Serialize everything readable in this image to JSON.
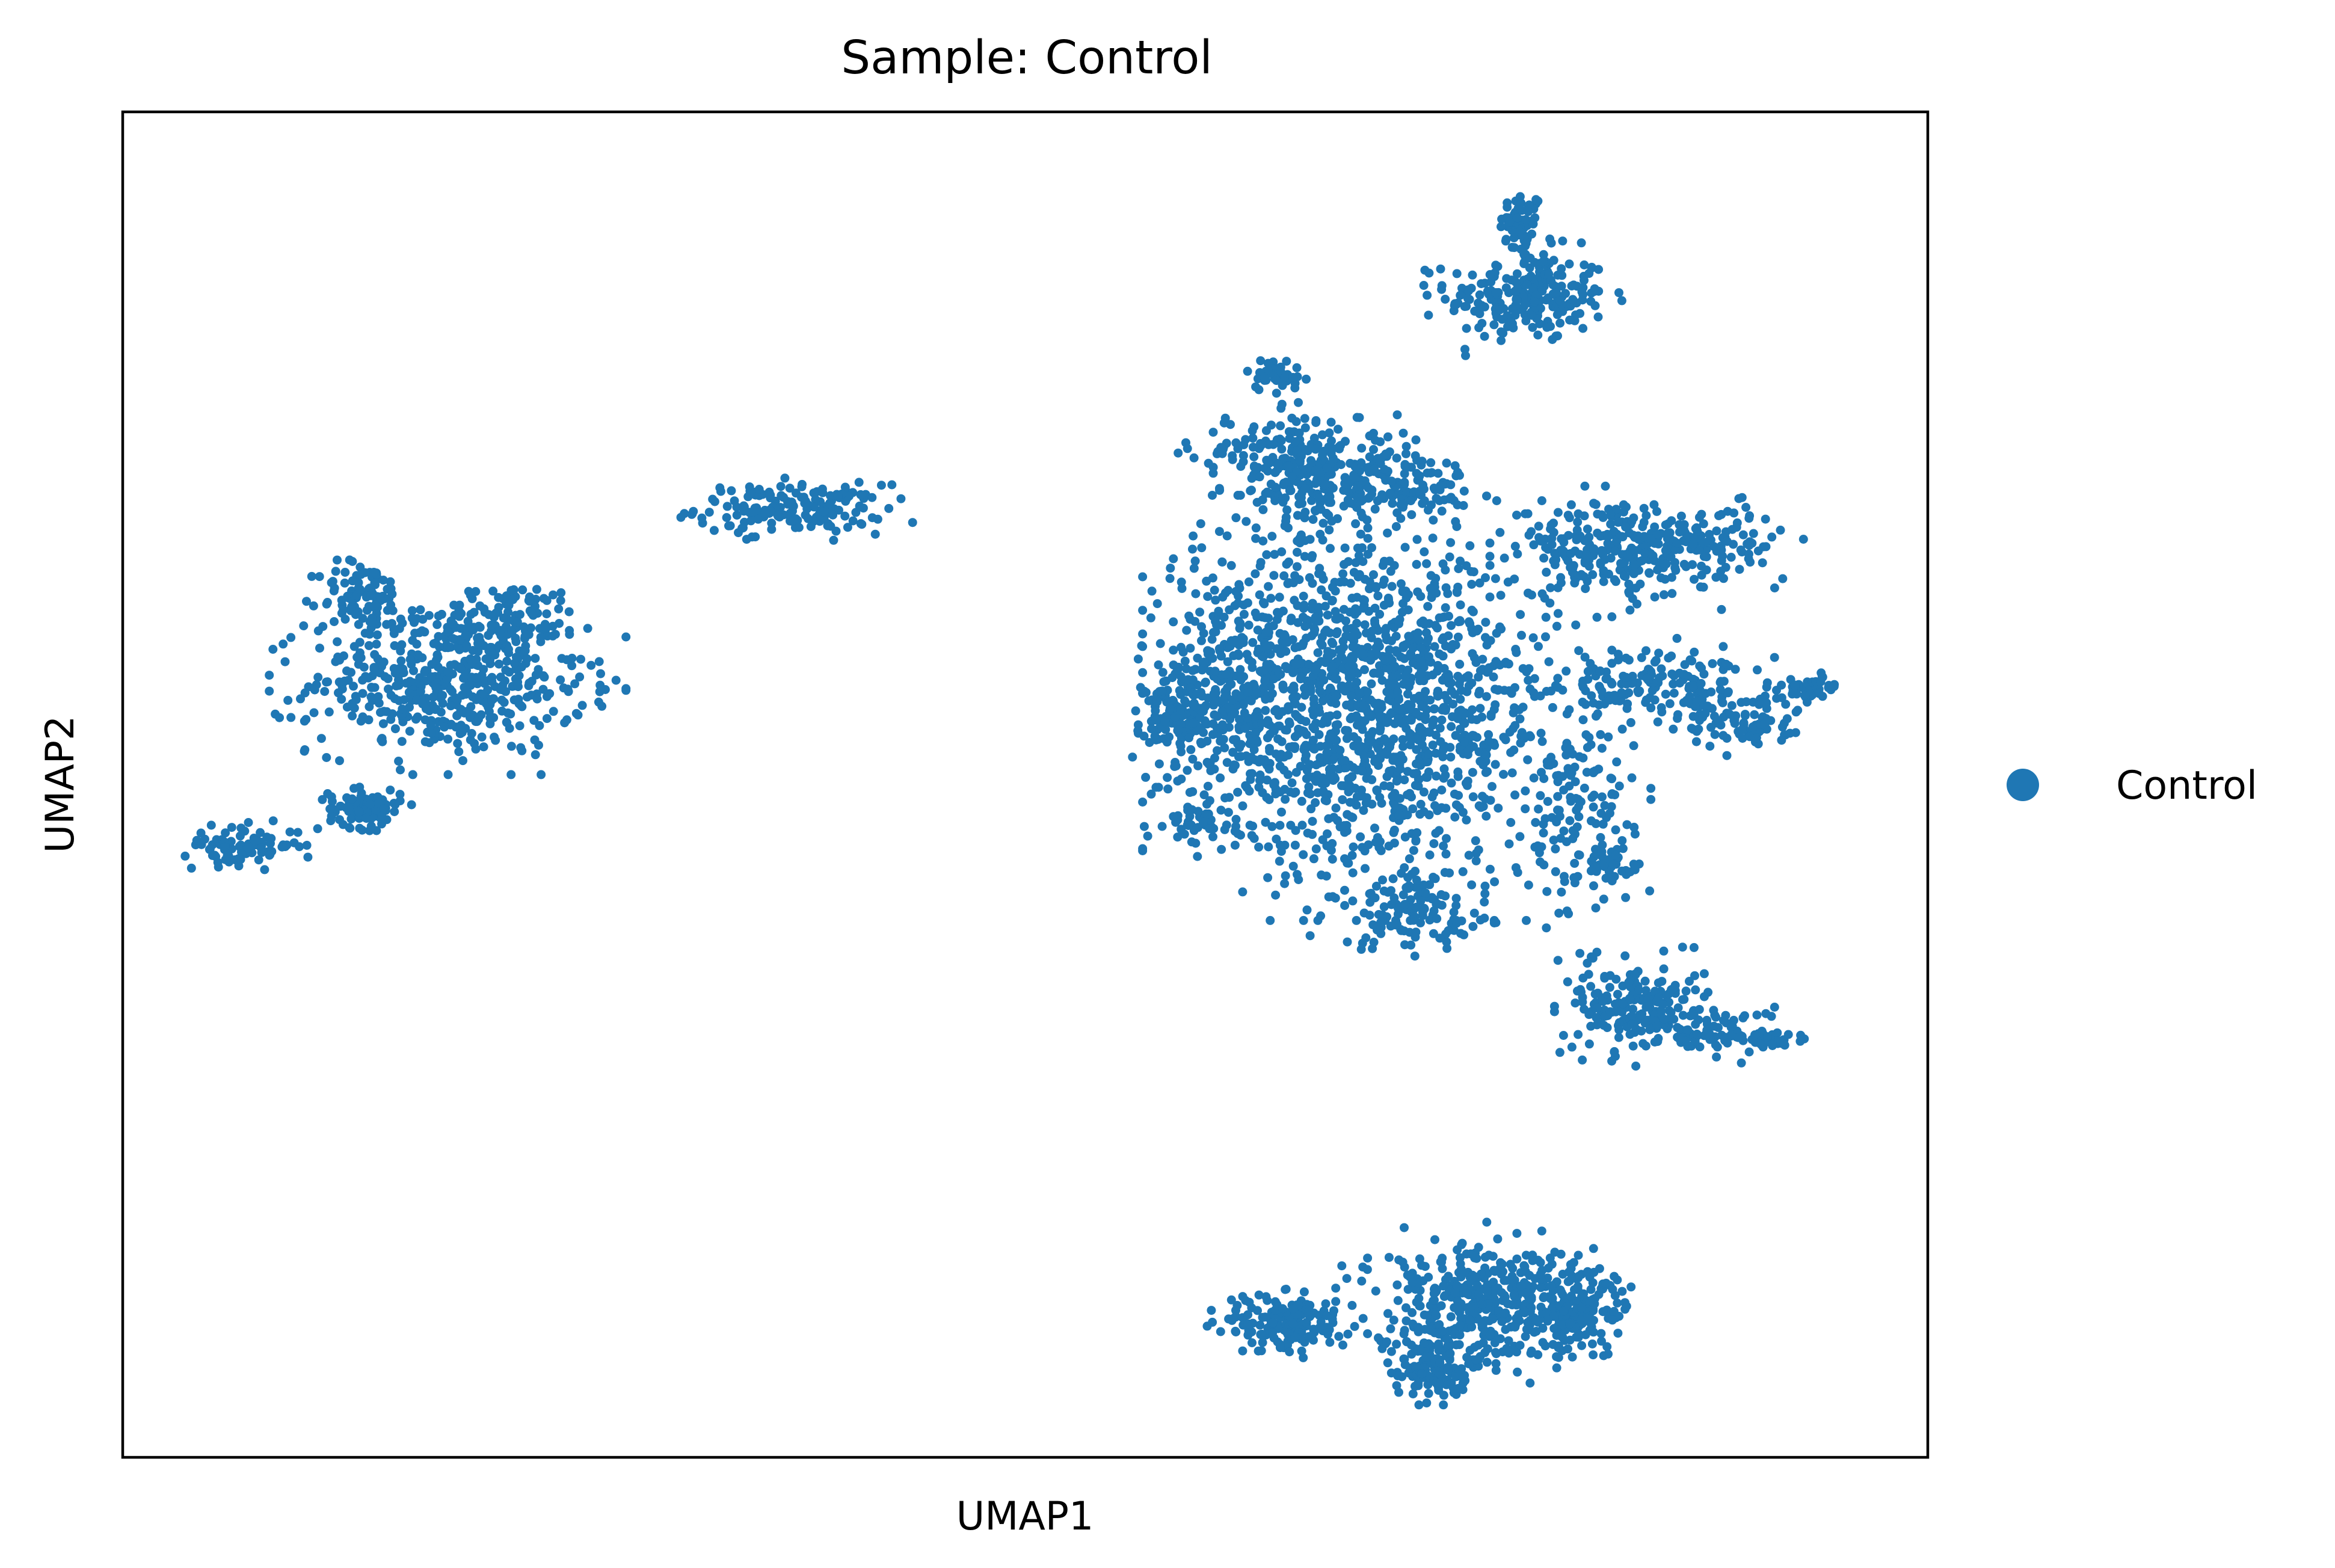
{
  "chart_data": {
    "type": "scatter",
    "title": "Sample: Control",
    "xlabel": "UMAP1",
    "ylabel": "UMAP2",
    "xlim": [
      0,
      100
    ],
    "ylim": [
      0,
      100
    ],
    "xticks": [],
    "yticks": [],
    "grid": false,
    "legend": {
      "position": "right",
      "entries": [
        "Control"
      ]
    },
    "series": [
      {
        "name": "Control",
        "color": "#1f77b4",
        "clusters": [
          {
            "cx": 77.5,
            "cy": 91.5,
            "sx": 0.6,
            "sy": 1.3,
            "n": 60
          },
          {
            "cx": 77.8,
            "cy": 86.3,
            "sx": 2.2,
            "sy": 1.7,
            "n": 230
          },
          {
            "cx": 37.0,
            "cy": 70.5,
            "sx": 2.6,
            "sy": 0.9,
            "n": 170
          },
          {
            "cx": 18.0,
            "cy": 57.5,
            "sx": 3.8,
            "sy": 2.6,
            "n": 520
          },
          {
            "cx": 13.3,
            "cy": 64.0,
            "sx": 1.2,
            "sy": 1.3,
            "n": 90
          },
          {
            "cx": 21.5,
            "cy": 62.5,
            "sx": 2.0,
            "sy": 1.2,
            "n": 110
          },
          {
            "cx": 13.4,
            "cy": 48.2,
            "sx": 1.0,
            "sy": 0.7,
            "n": 100
          },
          {
            "cx": 6.6,
            "cy": 45.5,
            "sx": 1.6,
            "sy": 0.7,
            "n": 90
          },
          {
            "cx": 63.8,
            "cy": 74.5,
            "sx": 2.2,
            "sy": 1.5,
            "n": 130
          },
          {
            "cx": 67.0,
            "cy": 72.5,
            "sx": 2.4,
            "sy": 2.0,
            "n": 220
          },
          {
            "cx": 71.5,
            "cy": 72.5,
            "sx": 1.6,
            "sy": 1.2,
            "n": 80
          },
          {
            "cx": 63.8,
            "cy": 80.5,
            "sx": 0.8,
            "sy": 0.6,
            "n": 40
          },
          {
            "cx": 69.5,
            "cy": 55.5,
            "sx": 5.0,
            "sy": 6.0,
            "n": 1350
          },
          {
            "cx": 62.5,
            "cy": 58.5,
            "sx": 2.4,
            "sy": 5.0,
            "n": 340
          },
          {
            "cx": 58.8,
            "cy": 55.0,
            "sx": 1.1,
            "sy": 2.0,
            "n": 140
          },
          {
            "cx": 59.6,
            "cy": 47.2,
            "sx": 0.8,
            "sy": 0.6,
            "n": 40
          },
          {
            "cx": 71.5,
            "cy": 40.5,
            "sx": 2.2,
            "sy": 1.4,
            "n": 120
          },
          {
            "cx": 80.5,
            "cy": 47.5,
            "sx": 1.6,
            "sy": 4.0,
            "n": 130
          },
          {
            "cx": 82.5,
            "cy": 44.0,
            "sx": 0.8,
            "sy": 0.6,
            "n": 40
          },
          {
            "cx": 82.5,
            "cy": 67.5,
            "sx": 2.6,
            "sy": 1.8,
            "n": 250
          },
          {
            "cx": 88.0,
            "cy": 68.0,
            "sx": 2.2,
            "sy": 1.3,
            "n": 100
          },
          {
            "cx": 85.5,
            "cy": 57.5,
            "sx": 2.8,
            "sy": 1.3,
            "n": 160
          },
          {
            "cx": 89.5,
            "cy": 54.5,
            "sx": 1.5,
            "sy": 0.9,
            "n": 70
          },
          {
            "cx": 93.3,
            "cy": 57.0,
            "sx": 1.1,
            "sy": 0.5,
            "n": 50
          },
          {
            "cx": 84.0,
            "cy": 33.5,
            "sx": 1.8,
            "sy": 1.7,
            "n": 210
          },
          {
            "cx": 88.5,
            "cy": 31.5,
            "sx": 1.5,
            "sy": 0.9,
            "n": 60
          },
          {
            "cx": 91.5,
            "cy": 31.0,
            "sx": 1.0,
            "sy": 0.4,
            "n": 40
          },
          {
            "cx": 64.5,
            "cy": 10.0,
            "sx": 1.7,
            "sy": 1.1,
            "n": 160
          },
          {
            "cx": 72.5,
            "cy": 6.5,
            "sx": 1.0,
            "sy": 1.0,
            "n": 120
          },
          {
            "cx": 75.0,
            "cy": 11.5,
            "sx": 3.0,
            "sy": 2.3,
            "n": 420
          },
          {
            "cx": 80.5,
            "cy": 11.0,
            "sx": 1.5,
            "sy": 1.5,
            "n": 150
          }
        ]
      }
    ]
  }
}
